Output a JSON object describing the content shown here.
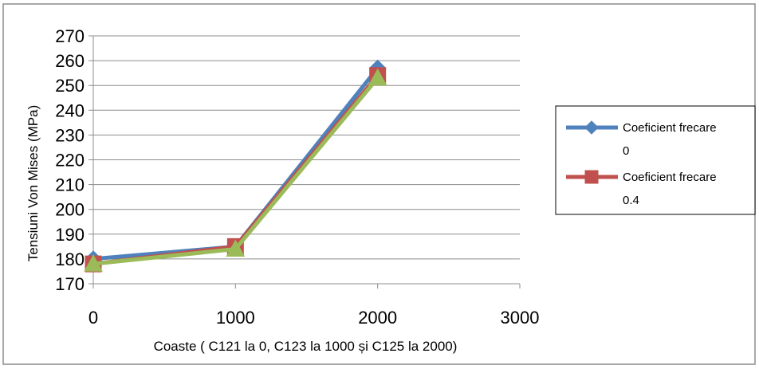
{
  "chart_data": {
    "type": "line",
    "title": "",
    "xlabel": "Coaste ( C121 la 0, C123 la 1000 și  C125  la  2000)",
    "ylabel": "Tensiuni Von Mises (MPa)",
    "xlim": [
      0,
      3000
    ],
    "ylim": [
      170,
      270
    ],
    "x_ticks": [
      "0",
      "1000",
      "2000",
      "3000"
    ],
    "y_ticks": [
      "170",
      "180",
      "190",
      "200",
      "210",
      "220",
      "230",
      "240",
      "250",
      "260",
      "270"
    ],
    "grid": "horizontal",
    "legend_position": "right",
    "x": [
      0,
      1000,
      2000
    ],
    "series": [
      {
        "name": "Coeficient frecare 0",
        "legend_lines": [
          "Coeficient frecare",
          "0"
        ],
        "color": "#4f81bd",
        "marker": "diamond",
        "values": [
          180,
          185,
          257
        ],
        "in_legend": true
      },
      {
        "name": "Coeficient frecare 0.4",
        "legend_lines": [
          "Coeficient frecare",
          "0.4"
        ],
        "color": "#c0504d",
        "marker": "square",
        "values": [
          178,
          185,
          254
        ],
        "in_legend": true
      },
      {
        "name": "",
        "legend_lines": [],
        "color": "#9bbb59",
        "marker": "triangle",
        "values": [
          178,
          184,
          253
        ],
        "in_legend": false
      }
    ]
  }
}
